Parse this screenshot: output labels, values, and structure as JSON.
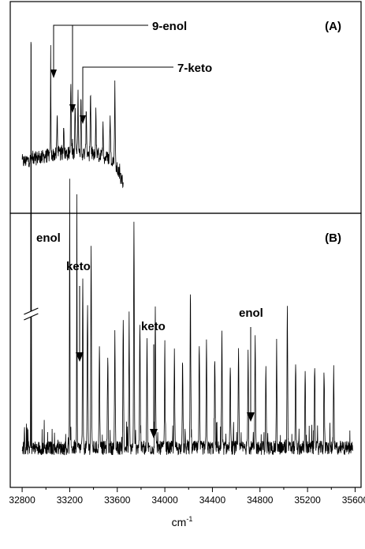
{
  "chart_data": {
    "type": "line",
    "xlabel": "cm",
    "xlabel_superscript": "-1",
    "xlim": [
      32700,
      35650
    ],
    "x_ticks": [
      32800,
      33200,
      33600,
      34000,
      34400,
      34800,
      35200,
      35600
    ],
    "x_tick_labels": [
      "32800",
      "33200",
      "33600",
      "34000",
      "34400",
      "34800",
      "35200",
      "35600"
    ],
    "panels": [
      {
        "id": "A",
        "label": "(A)",
        "x_range": [
          32800,
          33650
        ],
        "baseline": 0.15,
        "peaks": [
          {
            "x": 33040,
            "h": 0.6
          },
          {
            "x": 33095,
            "h": 0.22
          },
          {
            "x": 33150,
            "h": 0.18
          },
          {
            "x": 33210,
            "h": 0.4
          },
          {
            "x": 33245,
            "h": 0.3
          },
          {
            "x": 33270,
            "h": 0.33
          },
          {
            "x": 33295,
            "h": 0.3
          },
          {
            "x": 33340,
            "h": 0.26
          },
          {
            "x": 33375,
            "h": 0.32
          },
          {
            "x": 33420,
            "h": 0.24
          },
          {
            "x": 33480,
            "h": 0.2
          },
          {
            "x": 33540,
            "h": 0.26
          },
          {
            "x": 33580,
            "h": 0.45
          }
        ],
        "annotations": [
          {
            "text": "9-enol",
            "targets": [
              33040,
              33210
            ]
          },
          {
            "text": "7-keto",
            "targets": [
              33270
            ]
          }
        ]
      },
      {
        "id": "B",
        "label": "(B)",
        "x_range": [
          32800,
          35580
        ],
        "baseline": 0.06,
        "broken_peak_x": 32875,
        "peaks": [
          {
            "x": 32875,
            "h": 1.0
          },
          {
            "x": 33200,
            "h": 0.57
          },
          {
            "x": 33260,
            "h": 0.52
          },
          {
            "x": 33310,
            "h": 0.35
          },
          {
            "x": 33350,
            "h": 0.3
          },
          {
            "x": 33380,
            "h": 0.43
          },
          {
            "x": 33450,
            "h": 0.22
          },
          {
            "x": 33520,
            "h": 0.2
          },
          {
            "x": 33580,
            "h": 0.22
          },
          {
            "x": 33650,
            "h": 0.28
          },
          {
            "x": 33700,
            "h": 0.24
          },
          {
            "x": 33740,
            "h": 0.48
          },
          {
            "x": 33790,
            "h": 0.27
          },
          {
            "x": 33850,
            "h": 0.22
          },
          {
            "x": 33920,
            "h": 0.3
          },
          {
            "x": 34000,
            "h": 0.18
          },
          {
            "x": 34080,
            "h": 0.2
          },
          {
            "x": 34150,
            "h": 0.17
          },
          {
            "x": 34215,
            "h": 0.33
          },
          {
            "x": 34290,
            "h": 0.2
          },
          {
            "x": 34350,
            "h": 0.22
          },
          {
            "x": 34420,
            "h": 0.19
          },
          {
            "x": 34480,
            "h": 0.25
          },
          {
            "x": 34550,
            "h": 0.18
          },
          {
            "x": 34620,
            "h": 0.21
          },
          {
            "x": 34700,
            "h": 0.2
          },
          {
            "x": 34760,
            "h": 0.23
          },
          {
            "x": 34850,
            "h": 0.17
          },
          {
            "x": 34940,
            "h": 0.2
          },
          {
            "x": 35030,
            "h": 0.3
          },
          {
            "x": 35100,
            "h": 0.18
          },
          {
            "x": 35180,
            "h": 0.16
          },
          {
            "x": 35260,
            "h": 0.18
          },
          {
            "x": 35340,
            "h": 0.15
          },
          {
            "x": 35420,
            "h": 0.16
          }
        ],
        "annotations": [
          {
            "text": "enol",
            "targets": [
              32875
            ]
          },
          {
            "text": "keto",
            "targets": [
              33260
            ]
          },
          {
            "text": "keto",
            "targets": [
              33920
            ]
          },
          {
            "text": "enol",
            "targets": [
              34760
            ]
          }
        ]
      }
    ]
  }
}
